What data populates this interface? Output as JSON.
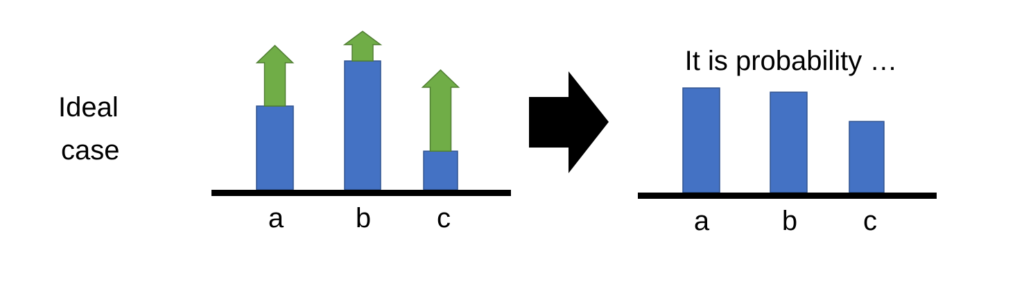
{
  "side_label": {
    "line1": "Ideal",
    "line2": "case"
  },
  "left_panel": {
    "categories": [
      "a",
      "b",
      "c"
    ],
    "relative_heights": [
      0.65,
      1.0,
      0.3
    ],
    "arrow_lengths": [
      0.47,
      0.23,
      0.63
    ]
  },
  "right_panel": {
    "title": "It is probability …",
    "categories": [
      "a",
      "b",
      "c"
    ],
    "relative_heights": [
      1.0,
      0.96,
      0.68
    ]
  },
  "colors": {
    "bar": "#4472C4",
    "bar_border": "#2F528F",
    "arrow": "#70AD47",
    "arrow_border": "#507E32",
    "axis": "#000000"
  }
}
